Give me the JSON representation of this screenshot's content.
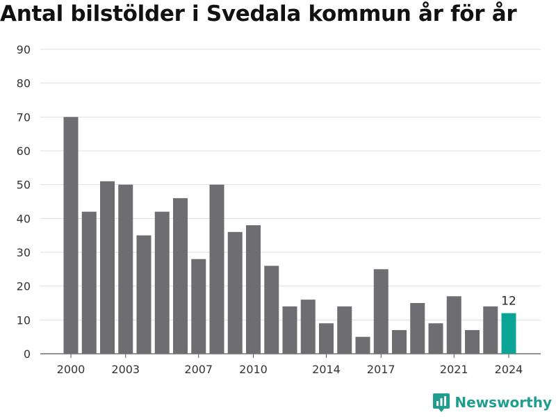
{
  "header": {
    "title": "Antal bilstölder i Svedala kommun år för år"
  },
  "brand": {
    "name": "Newsworthy"
  },
  "colors": {
    "bar": "#6e6d72",
    "highlight": "#0aa596",
    "grid": "#dedede",
    "brand": "#1f9e8f"
  },
  "chart_data": {
    "type": "bar",
    "title": "Antal bilstölder i Svedala kommun år för år",
    "xlabel": "",
    "ylabel": "",
    "ylim": [
      0,
      90
    ],
    "yticks": [
      0,
      10,
      20,
      30,
      40,
      50,
      60,
      70,
      80,
      90
    ],
    "grid": true,
    "categories": [
      2000,
      2001,
      2002,
      2003,
      2004,
      2005,
      2006,
      2007,
      2008,
      2009,
      2010,
      2011,
      2012,
      2013,
      2014,
      2015,
      2016,
      2017,
      2018,
      2019,
      2020,
      2021,
      2022,
      2023,
      2024
    ],
    "xtick_labels": [
      "2000",
      "2003",
      "2007",
      "2010",
      "2014",
      "2017",
      "2021",
      "2024"
    ],
    "values": [
      70,
      42,
      51,
      50,
      35,
      42,
      46,
      28,
      50,
      36,
      38,
      26,
      14,
      16,
      9,
      14,
      5,
      25,
      7,
      15,
      9,
      17,
      7,
      14,
      12
    ],
    "highlight_index": 24,
    "data_labels": [
      {
        "index": 24,
        "text": "12"
      }
    ]
  }
}
